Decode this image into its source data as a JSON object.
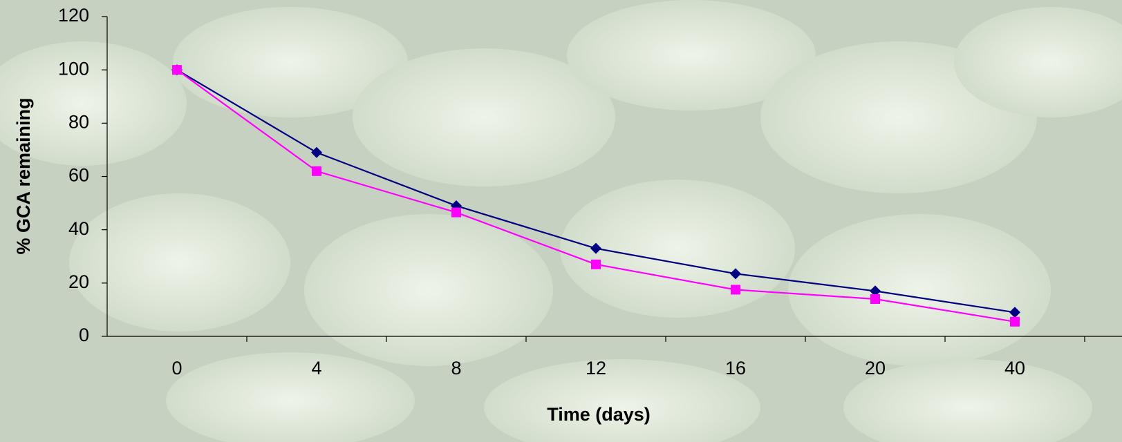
{
  "chart_data": {
    "type": "line",
    "x_label": "Time (days)",
    "y_label": "% GCA remaining",
    "categories": [
      "0",
      "4",
      "8",
      "12",
      "16",
      "20",
      "40"
    ],
    "series": [
      {
        "color": "#000080",
        "marker": "diamond",
        "values": [
          100,
          69,
          49,
          33,
          23.5,
          17,
          9
        ]
      },
      {
        "color": "#ff00ff",
        "marker": "square",
        "values": [
          100,
          62,
          46.5,
          27,
          17.5,
          14,
          5.5
        ]
      }
    ],
    "ylim": [
      0,
      120
    ],
    "yticks": [
      0,
      20,
      40,
      60,
      80,
      100,
      120
    ],
    "grid": false
  }
}
